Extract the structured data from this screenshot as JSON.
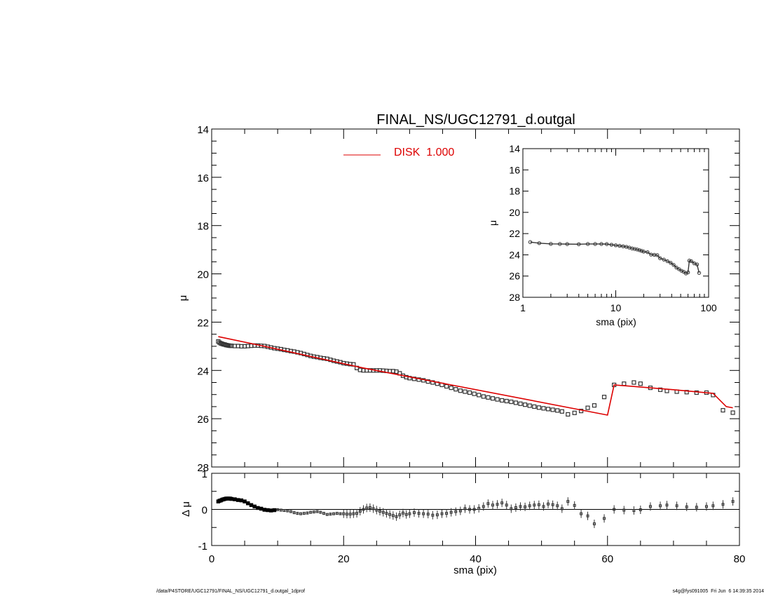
{
  "footer": {
    "path": "/data/P4STORE/UGC12791/FINAL_NS/UGC12791_d.outgal_1dprof",
    "user_date": "s4g@fys091005  Fri Jun  6 14:39:35 2014"
  },
  "chart_data": [
    {
      "id": "main",
      "type": "scatter",
      "title": "FINAL_NS/UGC12791_d.outgal",
      "xlabel": "",
      "ylabel": "μ",
      "xlim": [
        0,
        80
      ],
      "ylim": [
        28,
        14
      ],
      "yticks": [
        14,
        16,
        18,
        20,
        22,
        24,
        26,
        28
      ],
      "legend": {
        "label": "DISK  1.000",
        "position": "top-center",
        "color": "#dd0000"
      },
      "series": [
        {
          "name": "DISK  1.000",
          "type": "line",
          "color": "#dd0000",
          "x": [
            1,
            8,
            23,
            60,
            61,
            70,
            76,
            78,
            79
          ],
          "y": [
            22.6,
            23.0,
            23.9,
            25.85,
            24.6,
            24.8,
            24.95,
            25.5,
            25.55
          ]
        },
        {
          "name": "",
          "type": "scatter",
          "color": "#333333",
          "x": [
            1.0,
            1.2,
            1.4,
            1.6,
            1.8,
            2.0,
            2.2,
            2.4,
            2.6,
            2.8,
            3.0,
            3.5,
            4.0,
            4.5,
            5.0,
            5.5,
            6.0,
            6.5,
            7.0,
            7.5,
            8.0,
            8.5,
            9.0,
            9.5,
            10.0,
            10.5,
            11.0,
            11.5,
            12.0,
            12.5,
            13.0,
            13.5,
            14.0,
            14.5,
            15.0,
            15.5,
            16.0,
            16.5,
            17.0,
            17.5,
            18.0,
            18.5,
            19.0,
            19.5,
            20.0,
            20.5,
            21.0,
            21.5,
            22.0,
            22.5,
            23.0,
            23.5,
            24.0,
            24.5,
            25.0,
            25.5,
            26.0,
            26.5,
            27.0,
            27.5,
            28.0,
            28.5,
            29.0,
            29.5,
            30.0,
            30.7,
            31.4,
            32.1,
            32.8,
            33.5,
            34.2,
            34.9,
            35.6,
            36.3,
            37.0,
            37.7,
            38.4,
            39.1,
            39.8,
            40.5,
            41.2,
            41.9,
            42.6,
            43.3,
            44.0,
            44.7,
            45.4,
            46.1,
            46.8,
            47.5,
            48.2,
            48.9,
            49.6,
            50.3,
            51.0,
            51.7,
            52.4,
            53.1,
            54.0,
            55.0,
            56.0,
            57.0,
            58.0,
            59.5,
            61.0,
            62.5,
            64.0,
            65.0,
            66.5,
            68.0,
            69.0,
            70.5,
            72.0,
            73.5,
            75.0,
            76.0,
            77.5,
            79.0
          ],
          "y": [
            22.8,
            22.85,
            22.88,
            22.9,
            22.92,
            22.93,
            22.95,
            22.96,
            22.97,
            22.98,
            22.98,
            22.99,
            22.99,
            23.0,
            23.0,
            22.99,
            22.98,
            22.97,
            22.97,
            22.98,
            22.99,
            23.02,
            23.05,
            23.08,
            23.1,
            23.12,
            23.15,
            23.17,
            23.2,
            23.22,
            23.25,
            23.28,
            23.32,
            23.36,
            23.4,
            23.43,
            23.45,
            23.48,
            23.5,
            23.52,
            23.56,
            23.6,
            23.63,
            23.66,
            23.7,
            23.72,
            23.74,
            23.75,
            23.9,
            23.98,
            24.0,
            24.0,
            24.0,
            24.0,
            24.0,
            24.0,
            24.01,
            24.02,
            24.03,
            24.03,
            24.05,
            24.12,
            24.22,
            24.28,
            24.32,
            24.35,
            24.38,
            24.41,
            24.46,
            24.5,
            24.55,
            24.6,
            24.66,
            24.72,
            24.78,
            24.84,
            24.88,
            24.92,
            24.97,
            25.02,
            25.08,
            25.12,
            25.16,
            25.2,
            25.24,
            25.27,
            25.3,
            25.34,
            25.38,
            25.42,
            25.46,
            25.5,
            25.54,
            25.57,
            25.6,
            25.63,
            25.66,
            25.7,
            25.82,
            25.76,
            25.68,
            25.55,
            25.45,
            25.1,
            24.6,
            24.55,
            24.5,
            24.55,
            24.72,
            24.8,
            24.85,
            24.88,
            24.9,
            24.92,
            24.92,
            25.02,
            25.65,
            25.75
          ]
        }
      ]
    },
    {
      "id": "residual",
      "type": "scatter",
      "xlabel": "sma (pix)",
      "ylabel": "Δ μ",
      "xlim": [
        0,
        80
      ],
      "ylim": [
        -1,
        1
      ],
      "xticks": [
        0,
        20,
        40,
        60,
        80
      ],
      "yticks": [
        -1,
        0,
        1
      ],
      "series": [
        {
          "name": "",
          "type": "scatter",
          "color": "#000000",
          "x": [
            1.0,
            1.2,
            1.4,
            1.6,
            1.8,
            2.0,
            2.2,
            2.4,
            2.6,
            2.8,
            3.0,
            3.5,
            4.0,
            4.5,
            5.0,
            5.5,
            6.0,
            6.5,
            7.0,
            7.5,
            8.0,
            8.5,
            9.0,
            9.5,
            10.0,
            10.5,
            11.0,
            11.5,
            12.0,
            12.5,
            13.0,
            13.5,
            14.0,
            14.5,
            15.0,
            15.5,
            16.0,
            16.5,
            17.0,
            17.5,
            18.0,
            18.5,
            19.0,
            19.5,
            20.0,
            20.5,
            21.0,
            21.5,
            22.0,
            22.5,
            23.0,
            23.5,
            24.0,
            24.5,
            25.0,
            25.5,
            26.0,
            26.5,
            27.0,
            27.5,
            28.0,
            28.5,
            29.0,
            29.5,
            30.0,
            30.7,
            31.4,
            32.1,
            32.8,
            33.5,
            34.2,
            34.9,
            35.6,
            36.3,
            37.0,
            37.7,
            38.4,
            39.1,
            39.8,
            40.5,
            41.2,
            41.9,
            42.6,
            43.3,
            44.0,
            44.7,
            45.4,
            46.1,
            46.8,
            47.5,
            48.2,
            48.9,
            49.6,
            50.3,
            51.0,
            51.7,
            52.4,
            53.1,
            54.0,
            55.0,
            56.0,
            57.0,
            58.0,
            59.5,
            61.0,
            62.5,
            64.0,
            65.0,
            66.5,
            68.0,
            69.0,
            70.5,
            72.0,
            73.5,
            75.0,
            76.0,
            77.5,
            79.0
          ],
          "y": [
            0.22,
            0.24,
            0.25,
            0.27,
            0.28,
            0.29,
            0.3,
            0.3,
            0.3,
            0.3,
            0.29,
            0.28,
            0.26,
            0.25,
            0.22,
            0.17,
            0.12,
            0.08,
            0.04,
            0.02,
            -0.01,
            -0.02,
            -0.03,
            -0.02,
            -0.01,
            -0.02,
            -0.03,
            -0.04,
            -0.06,
            -0.09,
            -0.11,
            -0.12,
            -0.11,
            -0.1,
            -0.08,
            -0.07,
            -0.06,
            -0.08,
            -0.11,
            -0.14,
            -0.13,
            -0.12,
            -0.11,
            -0.12,
            -0.12,
            -0.13,
            -0.13,
            -0.12,
            -0.11,
            -0.05,
            0.0,
            0.04,
            0.05,
            0.02,
            -0.02,
            -0.05,
            -0.08,
            -0.11,
            -0.14,
            -0.17,
            -0.2,
            -0.15,
            -0.1,
            -0.14,
            -0.12,
            -0.09,
            -0.11,
            -0.12,
            -0.13,
            -0.16,
            -0.15,
            -0.12,
            -0.11,
            -0.08,
            -0.06,
            -0.04,
            0.02,
            0.0,
            0.0,
            0.03,
            0.08,
            0.16,
            0.12,
            0.14,
            0.18,
            0.12,
            0.02,
            0.05,
            0.08,
            0.07,
            0.1,
            0.12,
            0.13,
            0.08,
            0.15,
            0.13,
            0.1,
            0.02,
            0.22,
            0.11,
            -0.12,
            -0.18,
            -0.4,
            -0.25,
            0.0,
            -0.02,
            -0.03,
            -0.01,
            0.08,
            0.1,
            0.12,
            0.1,
            0.07,
            0.06,
            0.08,
            0.1,
            0.14,
            0.22
          ]
        }
      ]
    },
    {
      "id": "inset",
      "type": "scatter",
      "xlabel": "sma (pix)",
      "ylabel": "μ",
      "xscale": "log",
      "xlim": [
        1,
        100
      ],
      "ylim": [
        28,
        14
      ],
      "xticks": [
        1,
        10,
        100
      ],
      "yticks": [
        14,
        16,
        18,
        20,
        22,
        24,
        26,
        28
      ],
      "series": [
        {
          "name": "",
          "type": "scatter",
          "color": "#333333",
          "x": [
            1.2,
            1.5,
            2.0,
            2.5,
            3.0,
            4.0,
            5.0,
            6.0,
            7.0,
            8.0,
            9.0,
            10.0,
            11.0,
            12.0,
            13.0,
            14.0,
            15.0,
            16.0,
            17.0,
            18.0,
            19.0,
            20.0,
            22.0,
            24.0,
            26.0,
            28.0,
            30.0,
            33.0,
            36.0,
            39.0,
            42.0,
            45.0,
            48.0,
            51.0,
            54.0,
            57.0,
            60.0,
            62.0,
            65.0,
            70.0,
            75.0,
            79.0
          ],
          "y": [
            22.8,
            22.9,
            22.97,
            22.98,
            22.99,
            23.0,
            22.98,
            22.98,
            22.98,
            22.99,
            23.05,
            23.1,
            23.15,
            23.2,
            23.25,
            23.32,
            23.4,
            23.45,
            23.5,
            23.56,
            23.63,
            23.7,
            23.75,
            23.98,
            24.0,
            24.03,
            24.32,
            24.45,
            24.6,
            24.75,
            24.95,
            25.2,
            25.35,
            25.5,
            25.6,
            25.75,
            25.65,
            24.55,
            24.6,
            24.8,
            24.9,
            25.7
          ]
        }
      ]
    }
  ]
}
